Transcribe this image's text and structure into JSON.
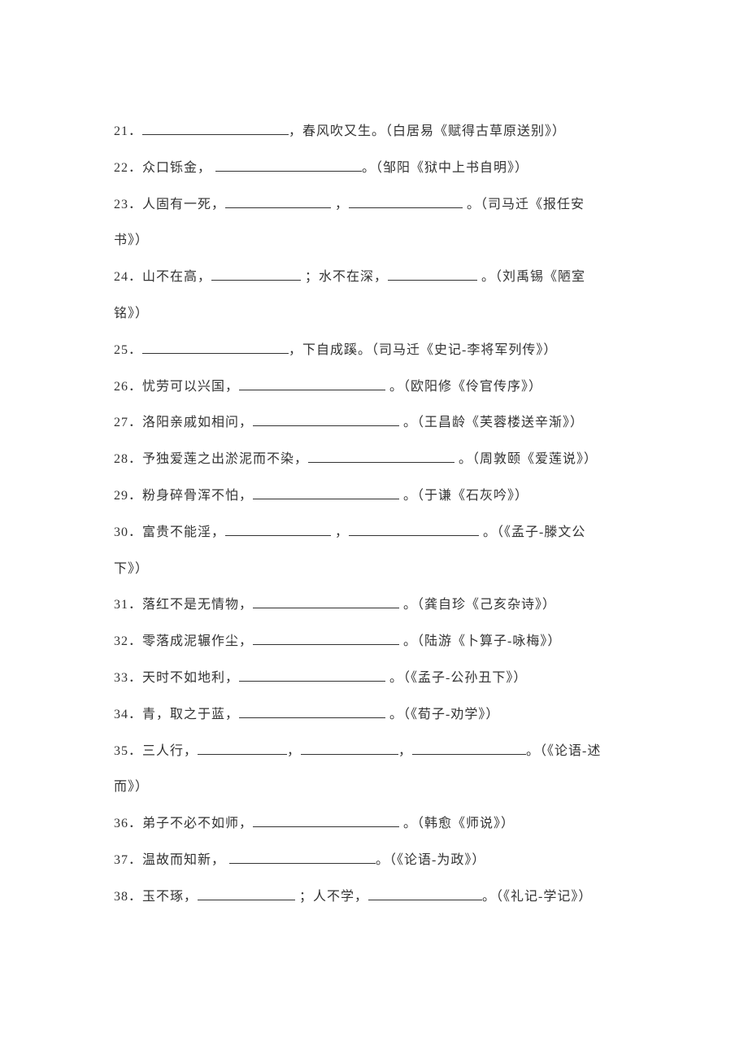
{
  "text_color": "#333333",
  "background_color": "#ffffff",
  "font_size": 16,
  "line_height": 2.8,
  "blank_color": "#333333",
  "questions": [
    {
      "num": "21",
      "segments": [
        {
          "t": "text",
          "v": "．"
        },
        {
          "t": "blank",
          "w": 180
        },
        {
          "t": "text",
          "v": "，春风吹又生。（白居易《赋得古草原送别》）"
        }
      ]
    },
    {
      "num": "22",
      "segments": [
        {
          "t": "text",
          "v": "．众口铄金，  "
        },
        {
          "t": "blank",
          "w": 180
        },
        {
          "t": "text",
          "v": "。（邹阳《狱中上书自明》）"
        }
      ]
    },
    {
      "num": "23",
      "segments": [
        {
          "t": "text",
          "v": "．人固有一死，"
        },
        {
          "t": "blank",
          "w": 130
        },
        {
          "t": "text",
          "v": " ，"
        },
        {
          "t": "blank",
          "w": 140
        },
        {
          "t": "text",
          "v": " 。（司马迁《报任安"
        }
      ]
    },
    {
      "num": "",
      "segments": [
        {
          "t": "text",
          "v": "书》）"
        }
      ]
    },
    {
      "num": "24",
      "segments": [
        {
          "t": "text",
          "v": "．山不在高，"
        },
        {
          "t": "blank",
          "w": 110
        },
        {
          "t": "text",
          "v": " ；水不在深，"
        },
        {
          "t": "blank",
          "w": 110
        },
        {
          "t": "text",
          "v": " 。（刘禹锡《陋室"
        }
      ]
    },
    {
      "num": "",
      "segments": [
        {
          "t": "text",
          "v": "铭》）"
        }
      ]
    },
    {
      "num": "25",
      "segments": [
        {
          "t": "text",
          "v": "．"
        },
        {
          "t": "blank",
          "w": 180
        },
        {
          "t": "text",
          "v": "，下自成蹊。（司马迁《史记-李将军列传》）"
        }
      ]
    },
    {
      "num": "26",
      "segments": [
        {
          "t": "text",
          "v": "．忧劳可以兴国，"
        },
        {
          "t": "blank",
          "w": 180
        },
        {
          "t": "text",
          "v": " 。（欧阳修《伶官传序》）"
        }
      ]
    },
    {
      "num": "27",
      "segments": [
        {
          "t": "text",
          "v": "．洛阳亲戚如相问，"
        },
        {
          "t": "blank",
          "w": 180
        },
        {
          "t": "text",
          "v": " 。（王昌龄《芙蓉楼送辛渐》）"
        }
      ]
    },
    {
      "num": "28",
      "segments": [
        {
          "t": "text",
          "v": "．予独爱莲之出淤泥而不染，"
        },
        {
          "t": "blank",
          "w": 180
        },
        {
          "t": "text",
          "v": " 。（周敦颐《爱莲说》）"
        }
      ]
    },
    {
      "num": "29",
      "segments": [
        {
          "t": "text",
          "v": "．粉身碎骨浑不怕，"
        },
        {
          "t": "blank",
          "w": 180
        },
        {
          "t": "text",
          "v": " 。（于谦《石灰吟》）"
        }
      ]
    },
    {
      "num": "30",
      "segments": [
        {
          "t": "text",
          "v": "．富贵不能淫，"
        },
        {
          "t": "blank",
          "w": 130
        },
        {
          "t": "text",
          "v": " ，"
        },
        {
          "t": "blank",
          "w": 160
        },
        {
          "t": "text",
          "v": " 。（《孟子-滕文公"
        }
      ]
    },
    {
      "num": "",
      "segments": [
        {
          "t": "text",
          "v": "下》）"
        }
      ]
    },
    {
      "num": "31",
      "segments": [
        {
          "t": "text",
          "v": "．落红不是无情物，"
        },
        {
          "t": "blank",
          "w": 180
        },
        {
          "t": "text",
          "v": " 。（龚自珍《己亥杂诗》）"
        }
      ]
    },
    {
      "num": "32",
      "segments": [
        {
          "t": "text",
          "v": "．零落成泥辗作尘，"
        },
        {
          "t": "blank",
          "w": 180
        },
        {
          "t": "text",
          "v": " 。（陆游《卜算子-咏梅》）"
        }
      ]
    },
    {
      "num": "33",
      "segments": [
        {
          "t": "text",
          "v": "．天时不如地利，"
        },
        {
          "t": "blank",
          "w": 180
        },
        {
          "t": "text",
          "v": " 。（《孟子-公孙丑下》）"
        }
      ]
    },
    {
      "num": "34",
      "segments": [
        {
          "t": "text",
          "v": "．青，取之于蓝，"
        },
        {
          "t": "blank",
          "w": 180
        },
        {
          "t": "text",
          "v": " 。（《荀子-劝学》）"
        }
      ]
    },
    {
      "num": "35",
      "segments": [
        {
          "t": "text",
          "v": "．三人行，"
        },
        {
          "t": "blank",
          "w": 110
        },
        {
          "t": "text",
          "v": "，"
        },
        {
          "t": "blank",
          "w": 120
        },
        {
          "t": "text",
          "v": "，"
        },
        {
          "t": "blank",
          "w": 140
        },
        {
          "t": "text",
          "v": "。（《论语-述"
        }
      ]
    },
    {
      "num": "",
      "segments": [
        {
          "t": "text",
          "v": "而》）"
        }
      ]
    },
    {
      "num": "36",
      "segments": [
        {
          "t": "text",
          "v": "．弟子不必不如师，"
        },
        {
          "t": "blank",
          "w": 180
        },
        {
          "t": "text",
          "v": " 。（韩愈《师说》）"
        }
      ]
    },
    {
      "num": "37",
      "segments": [
        {
          "t": "text",
          "v": "．温故而知新，  "
        },
        {
          "t": "blank",
          "w": 180
        },
        {
          "t": "text",
          "v": "。（《论语-为政》）"
        }
      ]
    },
    {
      "num": "38",
      "segments": [
        {
          "t": "text",
          "v": "．玉不琢，"
        },
        {
          "t": "blank",
          "w": 120
        },
        {
          "t": "text",
          "v": " ；人不学，"
        },
        {
          "t": "blank",
          "w": 140
        },
        {
          "t": "text",
          "v": "。（《礼记-学记》）"
        }
      ]
    }
  ]
}
